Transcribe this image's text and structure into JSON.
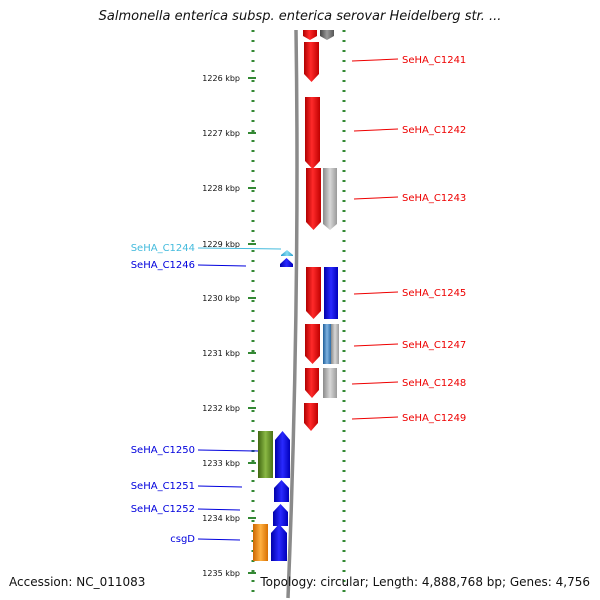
{
  "title": "Salmonella enterica subsp. enterica serovar Heidelberg str. ...",
  "accession": "Accession: NC_011083",
  "topology": "Topology: circular; Length: 4,888,768 bp; Genes: 4,756",
  "colors": {
    "red": "#ee0000",
    "gray": "#9a9a9a",
    "blue": "#0000dd",
    "steel_blue": "#3a7fc0",
    "cyan": "#44bbdd",
    "olive": "#5b8a1f",
    "orange": "#ee8800",
    "dot_green": "#338833",
    "backbone": "#8a8a8a"
  },
  "ticks": [
    {
      "label": "1226 kbp"
    },
    {
      "label": "1227 kbp"
    },
    {
      "label": "1228 kbp"
    },
    {
      "label": "1229 kbp"
    },
    {
      "label": "1230 kbp"
    },
    {
      "label": "1231 kbp"
    },
    {
      "label": "1232 kbp"
    },
    {
      "label": "1233 kbp"
    },
    {
      "label": "1234 kbp"
    },
    {
      "label": "1235 kbp"
    }
  ],
  "right_labels": [
    {
      "text": "SeHA_C1241",
      "color": "red"
    },
    {
      "text": "SeHA_C1242",
      "color": "red"
    },
    {
      "text": "SeHA_C1243",
      "color": "red"
    },
    {
      "text": "SeHA_C1245",
      "color": "red"
    },
    {
      "text": "SeHA_C1247",
      "color": "red"
    },
    {
      "text": "SeHA_C1248",
      "color": "red"
    },
    {
      "text": "SeHA_C1249",
      "color": "red"
    }
  ],
  "left_labels": [
    {
      "text": "SeHA_C1244",
      "color": "cyan"
    },
    {
      "text": "SeHA_C1246",
      "color": "blue"
    },
    {
      "text": "SeHA_C1250",
      "color": "blue"
    },
    {
      "text": "SeHA_C1251",
      "color": "blue"
    },
    {
      "text": "SeHA_C1252",
      "color": "blue"
    },
    {
      "text": "csgD",
      "color": "blue"
    }
  ]
}
